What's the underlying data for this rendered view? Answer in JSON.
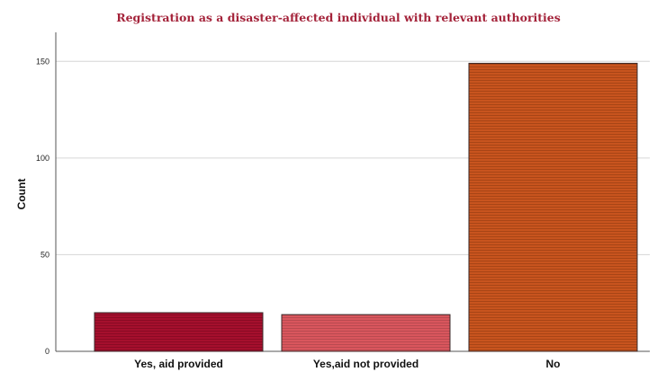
{
  "chart_data": {
    "type": "bar",
    "title": "Registration as a disaster-affected individual with relevant authorities",
    "xlabel": "",
    "ylabel": "Count",
    "categories": [
      "Yes, aid provided",
      "Yes,aid not provided",
      "No"
    ],
    "values": [
      20,
      19,
      149
    ],
    "ylim": [
      0,
      165
    ],
    "yticks": [
      0,
      50,
      100,
      150
    ],
    "grid": true,
    "legend": "none"
  },
  "colors": {
    "title": "#a4233a",
    "bars": [
      "#a50f2d",
      "#d9565d",
      "#c8541e"
    ],
    "bar_stripes": [
      "#8a0a24",
      "#b94a50",
      "#a84516"
    ],
    "bar_outline": "#3a2a2a",
    "grid": "#d6d6d6",
    "axis": "#555555"
  }
}
